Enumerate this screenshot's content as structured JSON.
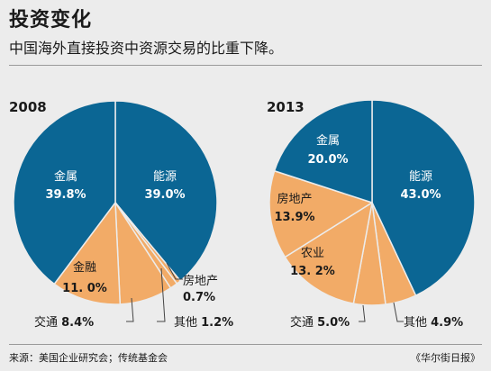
{
  "header": {
    "title": "投资变化",
    "subtitle": "中国海外直接投资中资源交易的比重下降。"
  },
  "footer": {
    "source": "来源：美国企业研究会；传统基金会",
    "publisher": "《华尔街日报》"
  },
  "colors": {
    "blue": "#0b6694",
    "orange": "#f2ab67",
    "background": "#ececec",
    "text_dark": "#1a1a1a",
    "text_light": "#ffffff",
    "leader": "#444444"
  },
  "chart_data": [
    {
      "type": "pie",
      "title": "2008",
      "slices": [
        {
          "label": "能源",
          "value": 39.0,
          "display": "39.0%",
          "color": "blue"
        },
        {
          "label": "房地产",
          "value": 0.7,
          "display": "0.7%",
          "color": "orange"
        },
        {
          "label": "其他",
          "value": 1.2,
          "display": "1.2%",
          "color": "orange"
        },
        {
          "label": "交通",
          "value": 8.4,
          "display": "8.4%",
          "color": "orange"
        },
        {
          "label": "金融",
          "value": 11.0,
          "display": "11. 0%",
          "color": "orange"
        },
        {
          "label": "金属",
          "value": 39.8,
          "display": "39.8%",
          "color": "blue"
        }
      ]
    },
    {
      "type": "pie",
      "title": "2013",
      "slices": [
        {
          "label": "能源",
          "value": 43.0,
          "display": "43.0%",
          "color": "blue"
        },
        {
          "label": "其他",
          "value": 4.9,
          "display": "4.9%",
          "color": "orange"
        },
        {
          "label": "交通",
          "value": 5.0,
          "display": "5.0%",
          "color": "orange"
        },
        {
          "label": "农业",
          "value": 13.2,
          "display": "13. 2%",
          "color": "orange"
        },
        {
          "label": "房地产",
          "value": 13.9,
          "display": "13.9%",
          "color": "orange"
        },
        {
          "label": "金属",
          "value": 20.0,
          "display": "20.0%",
          "color": "blue"
        }
      ]
    }
  ]
}
